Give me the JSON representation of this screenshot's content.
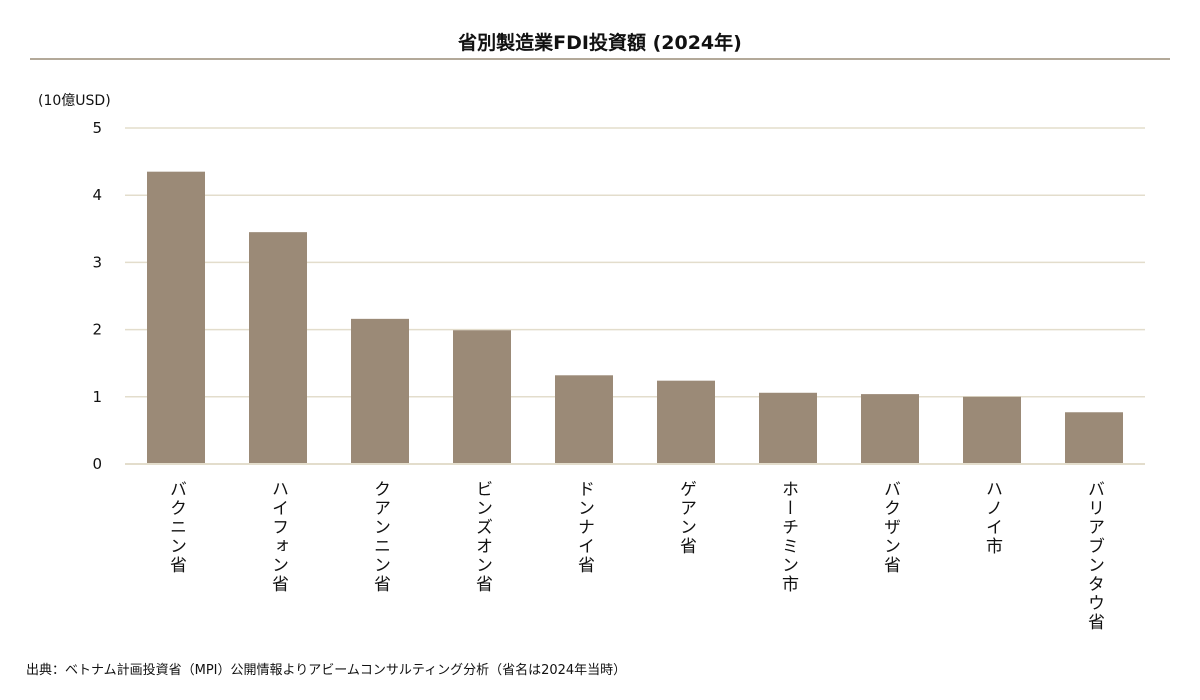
{
  "chart_data": {
    "type": "bar",
    "title": "省別製造業FDI投資額 (2024年)",
    "ylabel": "(10億USD)",
    "xlabel": "",
    "ylim": [
      0,
      5
    ],
    "yticks": [
      0,
      1,
      2,
      3,
      4,
      5
    ],
    "grid": true,
    "categories": [
      "バクニン省",
      "ハイフォン省",
      "クアンニン省",
      "ビンズオン省",
      "ドンナイ省",
      "ゲアン省",
      "ホーチミン市",
      "バクザン省",
      "ハノイ市",
      "バリアブンタウ省"
    ],
    "values": [
      4.35,
      3.45,
      2.16,
      1.99,
      1.32,
      1.24,
      1.06,
      1.04,
      1.0,
      0.77
    ],
    "bar_color": "#9b8a77",
    "grid_color": "#e3ddcc"
  },
  "source": "出典：ベトナム計画投資省（MPI）公開情報よりアビームコンサルティング分析（省名は2024年当時）"
}
